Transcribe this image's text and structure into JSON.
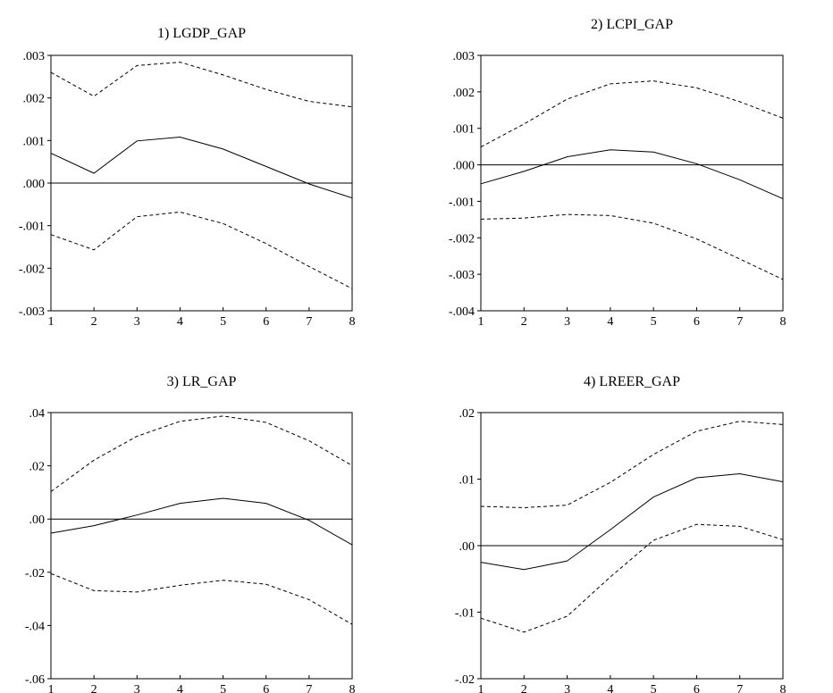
{
  "chart_data": [
    {
      "type": "line",
      "title": "1) LGDP_GAP",
      "x": [
        1,
        2,
        3,
        4,
        5,
        6,
        7,
        8
      ],
      "ylim": [
        -0.003,
        0.003
      ],
      "yticks": [
        0.003,
        0.002,
        0.001,
        0.0,
        -0.001,
        -0.002,
        -0.003
      ],
      "ytick_labels": [
        ".003",
        ".002",
        ".001",
        ".000",
        "-.001",
        "-.002",
        "-.003"
      ],
      "xtick_labels": [
        "1",
        "2",
        "3",
        "4",
        "5",
        "6",
        "7",
        "8"
      ],
      "series": [
        {
          "style": "solid",
          "values": [
            0.0007,
            0.00023,
            0.00099,
            0.00108,
            0.0008,
            0.00039,
            -2e-05,
            -0.00035
          ]
        },
        {
          "style": "dashed",
          "values": [
            0.0026,
            0.00204,
            0.00276,
            0.00284,
            0.00254,
            0.0022,
            0.00192,
            0.00179
          ]
        },
        {
          "style": "dashed",
          "values": [
            -0.00121,
            -0.00157,
            -0.00079,
            -0.00068,
            -0.00095,
            -0.00142,
            -0.00196,
            -0.00248
          ]
        }
      ],
      "zero_line": true
    },
    {
      "type": "line",
      "title": "2) LCPI_GAP",
      "x": [
        1,
        2,
        3,
        4,
        5,
        6,
        7,
        8
      ],
      "ylim": [
        -0.004,
        0.003
      ],
      "yticks": [
        0.003,
        0.002,
        0.001,
        0.0,
        -0.001,
        -0.002,
        -0.003,
        -0.004
      ],
      "ytick_labels": [
        ".003",
        ".002",
        ".001",
        ".000",
        "-.001",
        "-.002",
        "-.003",
        "-.004"
      ],
      "xtick_labels": [
        "1",
        "2",
        "3",
        "4",
        "5",
        "6",
        "7",
        "8"
      ],
      "series": [
        {
          "style": "solid",
          "values": [
            -0.00052,
            -0.00018,
            0.00022,
            0.00041,
            0.00035,
            3e-05,
            -0.00041,
            -0.00093
          ]
        },
        {
          "style": "dashed",
          "values": [
            0.00049,
            0.00112,
            0.0018,
            0.00222,
            0.0023,
            0.00211,
            0.00173,
            0.00128
          ]
        },
        {
          "style": "dashed",
          "values": [
            -0.00149,
            -0.00146,
            -0.00136,
            -0.00139,
            -0.0016,
            -0.00203,
            -0.00258,
            -0.00314
          ]
        }
      ],
      "zero_line": true
    },
    {
      "type": "line",
      "title": "3) LR_GAP",
      "x": [
        1,
        2,
        3,
        4,
        5,
        6,
        7,
        8
      ],
      "ylim": [
        -0.06,
        0.04
      ],
      "yticks": [
        0.04,
        0.02,
        0.0,
        -0.02,
        -0.04,
        -0.06
      ],
      "ytick_labels": [
        ".04",
        ".02",
        ".00",
        "-.02",
        "-.04",
        "-.06"
      ],
      "xtick_labels": [
        "1",
        "2",
        "3",
        "4",
        "5",
        "6",
        "7",
        "8"
      ],
      "series": [
        {
          "style": "solid",
          "values": [
            -0.0053,
            -0.0025,
            0.0015,
            0.0059,
            0.0078,
            0.0059,
            -0.0005,
            -0.0097
          ]
        },
        {
          "style": "dashed",
          "values": [
            0.0103,
            0.0221,
            0.0311,
            0.0367,
            0.0387,
            0.0363,
            0.0294,
            0.0201
          ]
        },
        {
          "style": "dashed",
          "values": [
            -0.0205,
            -0.0269,
            -0.0274,
            -0.0249,
            -0.023,
            -0.0245,
            -0.0303,
            -0.0396
          ]
        }
      ],
      "zero_line": true
    },
    {
      "type": "line",
      "title": "4) LREER_GAP",
      "x": [
        1,
        2,
        3,
        4,
        5,
        6,
        7,
        8
      ],
      "ylim": [
        -0.02,
        0.02
      ],
      "yticks": [
        0.02,
        0.01,
        0.0,
        -0.01,
        -0.02
      ],
      "ytick_labels": [
        ".02",
        ".01",
        ".00",
        "-.01",
        "-.02"
      ],
      "xtick_labels": [
        "1",
        "2",
        "3",
        "4",
        "5",
        "6",
        "7",
        "8"
      ],
      "series": [
        {
          "style": "solid",
          "values": [
            -0.0025,
            -0.0036,
            -0.0023,
            0.0024,
            0.0073,
            0.0102,
            0.0108,
            0.0096
          ]
        },
        {
          "style": "dashed",
          "values": [
            0.0059,
            0.0057,
            0.0061,
            0.0095,
            0.0137,
            0.0172,
            0.0187,
            0.0182
          ]
        },
        {
          "style": "dashed",
          "values": [
            -0.0109,
            -0.013,
            -0.0106,
            -0.0047,
            0.0008,
            0.0032,
            0.0029,
            0.0009
          ]
        }
      ],
      "zero_line": true
    }
  ]
}
